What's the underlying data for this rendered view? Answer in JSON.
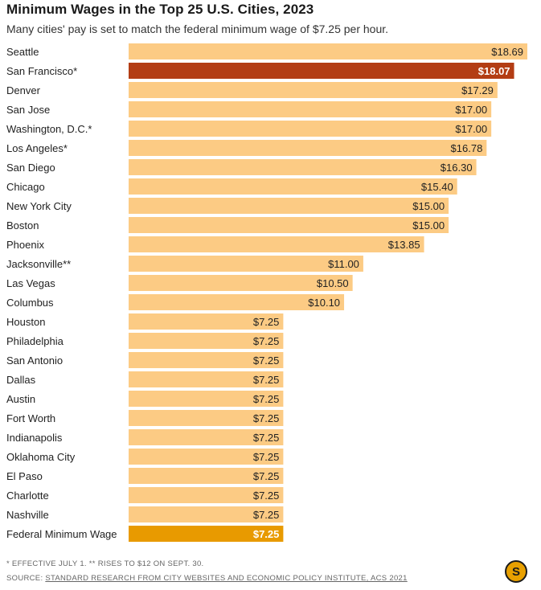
{
  "header": {
    "title": "Minimum Wages in the Top 25 U.S. Cities, 2023",
    "subtitle": "Many cities' pay is set to match the federal minimum wage of $7.25 per hour."
  },
  "footer": {
    "note": "* EFFECTIVE JULY 1. ** RISES TO $12 ON SEPT. 30.",
    "source_prefix": "SOURCE: ",
    "source_link": "STANDARD RESEARCH FROM CITY WEBSITES AND ECONOMIC POLICY INSTITUTE, ACS 2021"
  },
  "logo": {
    "letter": "S",
    "icon": "standard-logo-icon"
  },
  "colors": {
    "bar": "#fccb84",
    "highlight": "#b33d14",
    "federal": "#e89a00"
  },
  "chart_data": {
    "type": "bar",
    "orientation": "horizontal",
    "title": "Minimum Wages in the Top 25 U.S. Cities, 2023",
    "subtitle": "Many cities' pay is set to match the federal minimum wage of $7.25 per hour.",
    "xlabel": "",
    "ylabel": "",
    "xlim": [
      0,
      18.69
    ],
    "grid": false,
    "legend": "none",
    "categories": [
      "Seattle",
      "San Francisco*",
      "Denver",
      "San Jose",
      "Washington, D.C.*",
      "Los Angeles*",
      "San Diego",
      "Chicago",
      "New York City",
      "Boston",
      "Phoenix",
      "Jacksonville**",
      "Las Vegas",
      "Columbus",
      "Houston",
      "Philadelphia",
      "San Antonio",
      "Dallas",
      "Austin",
      "Fort Worth",
      "Indianapolis",
      "Oklahoma City",
      "El Paso",
      "Charlotte",
      "Nashville",
      "Federal Minimum Wage"
    ],
    "values": [
      18.69,
      18.07,
      17.29,
      17.0,
      17.0,
      16.78,
      16.3,
      15.4,
      15.0,
      15.0,
      13.85,
      11.0,
      10.5,
      10.1,
      7.25,
      7.25,
      7.25,
      7.25,
      7.25,
      7.25,
      7.25,
      7.25,
      7.25,
      7.25,
      7.25,
      7.25
    ],
    "value_labels": [
      "$18.69",
      "$18.07",
      "$17.29",
      "$17.00",
      "$17.00",
      "$16.78",
      "$16.30",
      "$15.40",
      "$15.00",
      "$15.00",
      "$13.85",
      "$11.00",
      "$10.50",
      "$10.10",
      "$7.25",
      "$7.25",
      "$7.25",
      "$7.25",
      "$7.25",
      "$7.25",
      "$7.25",
      "$7.25",
      "$7.25",
      "$7.25",
      "$7.25",
      "$7.25"
    ],
    "highlighted": [
      "San Francisco*"
    ],
    "federal": [
      "Federal Minimum Wage"
    ]
  }
}
